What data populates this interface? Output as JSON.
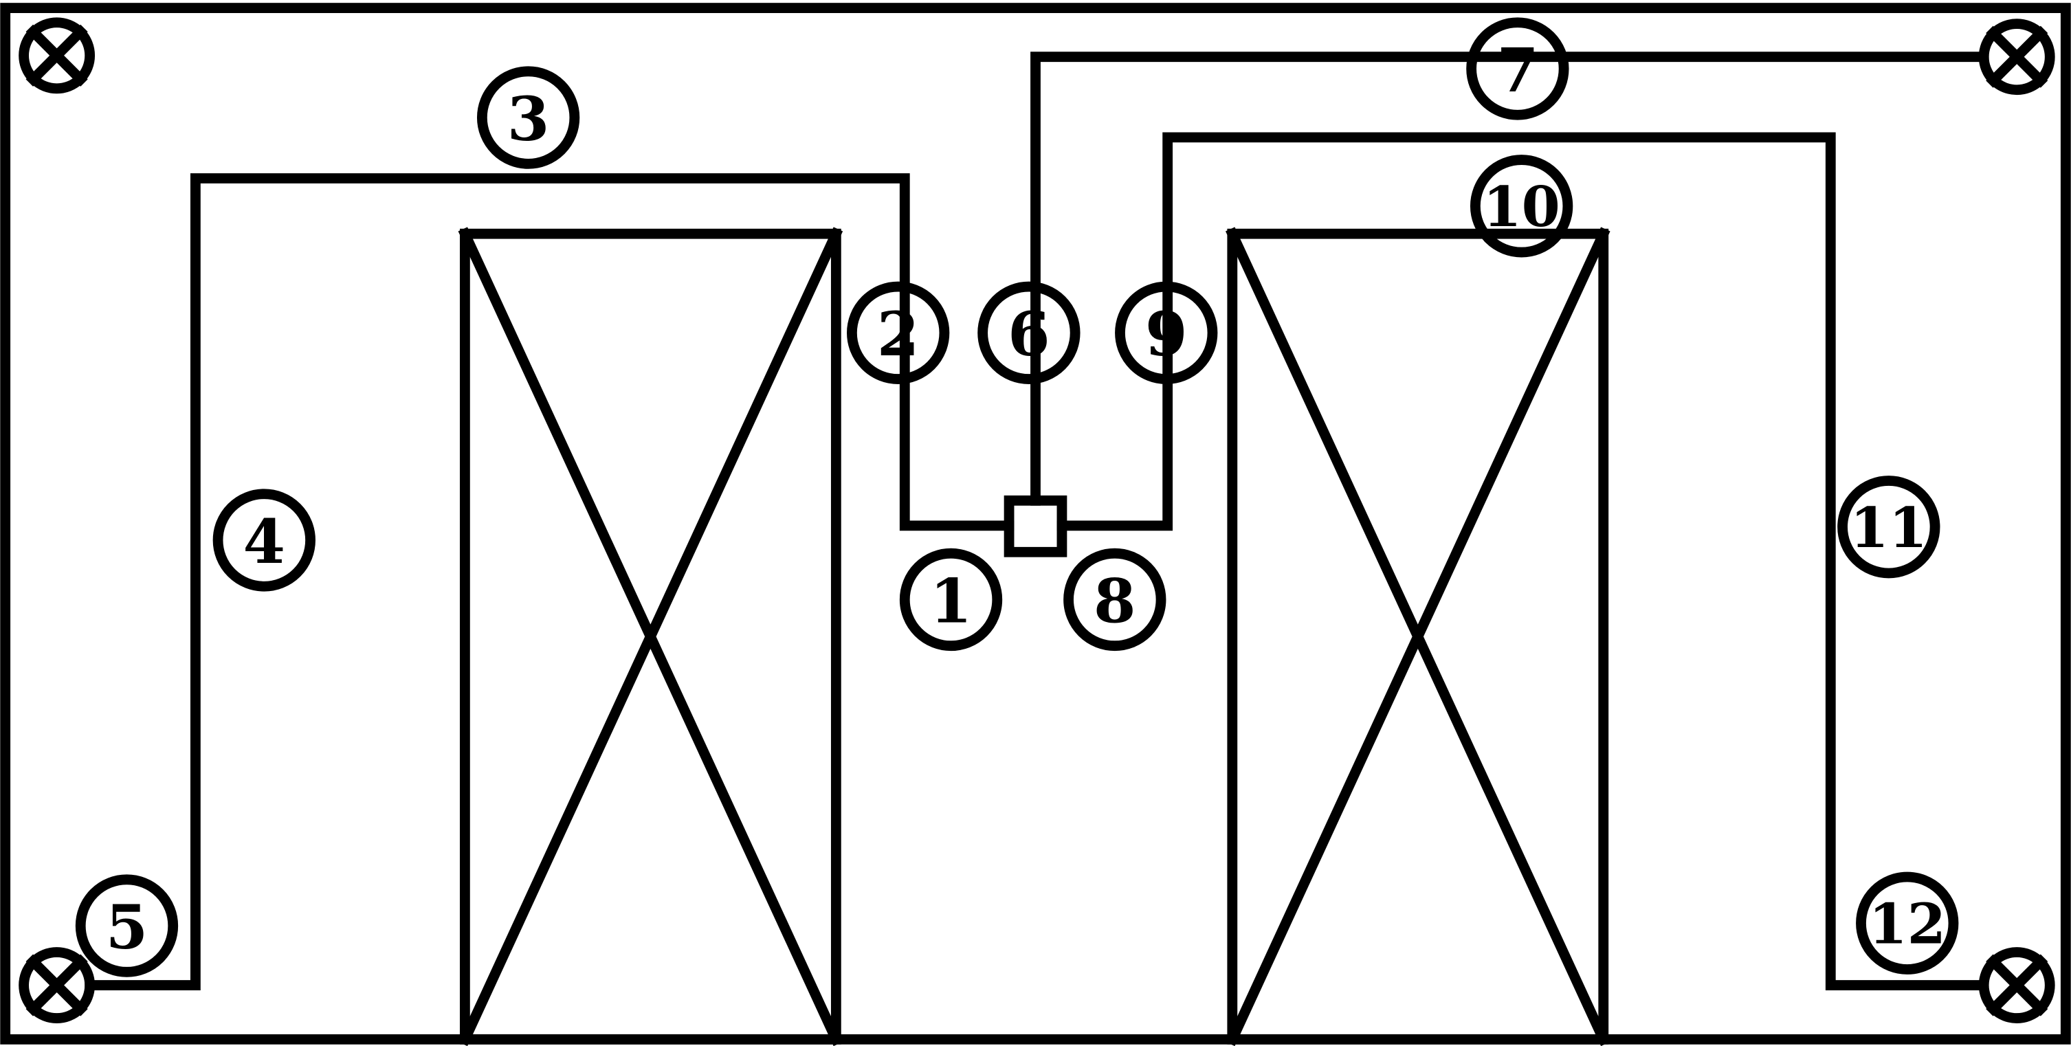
{
  "markers": [
    {
      "label": "1"
    },
    {
      "label": "2"
    },
    {
      "label": "3"
    },
    {
      "label": "4"
    },
    {
      "label": "5"
    },
    {
      "label": "6"
    },
    {
      "label": "7"
    },
    {
      "label": "8"
    },
    {
      "label": "9"
    },
    {
      "label": "10"
    },
    {
      "label": "11"
    },
    {
      "label": "12"
    }
  ],
  "lamp_symbol": "circle-x-icon",
  "bay_symbol": "crossed-rectangle",
  "colors": {
    "line": "#000000",
    "background": "#ffffff"
  }
}
